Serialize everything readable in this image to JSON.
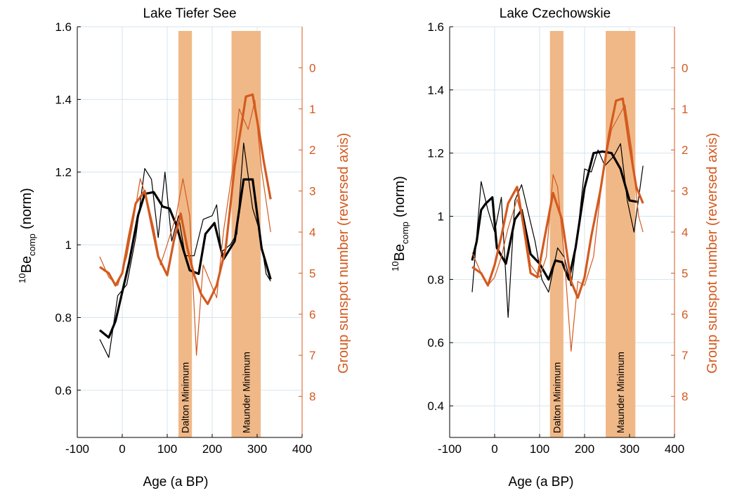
{
  "colors": {
    "left_axis": "#000000",
    "right_axis": "#d35a1f",
    "band": "#f0b887",
    "grid": "#d4e5ee"
  },
  "shared": {
    "xlabel": "Age (a BP)",
    "x_ticks": [
      "-100",
      "0",
      "100",
      "200",
      "300",
      "400"
    ],
    "ylabel_sup": "10",
    "ylabel_main": "Be",
    "ylabel_sub": "comp",
    "ylabel_tail": "(norm)",
    "ylabel_right": "Group sunspot number (reversed axis)",
    "band_labels": [
      "Dalton Minimum",
      "Maunder Minimum"
    ]
  },
  "chart_data": [
    {
      "type": "line",
      "title": "Lake Tiefer See",
      "xlabel": "Age (a BP)",
      "ylabel": "10Be comp (norm)",
      "ylabel_right": "Group sunspot number (reversed axis)",
      "xlim": [
        -100,
        400
      ],
      "ylim": [
        0.47,
        1.6
      ],
      "ylim_right": [
        9.0,
        -1.0
      ],
      "right_axis_reversed": true,
      "grid": true,
      "y_ticks": [
        "0.6",
        "0.8",
        "1",
        "1.2",
        "1.4",
        "1.6"
      ],
      "y_right_ticks": [
        "0",
        "1",
        "2",
        "3",
        "4",
        "5",
        "6",
        "7",
        "8"
      ],
      "bands": [
        {
          "label": "Dalton Minimum",
          "x": [
            125,
            155
          ]
        },
        {
          "label": "Maunder Minimum",
          "x": [
            243,
            308
          ]
        }
      ],
      "series": [
        {
          "axis": "left",
          "style": "thin",
          "x": [
            -50,
            -30,
            -10,
            10,
            30,
            50,
            65,
            80,
            95,
            110,
            125,
            140,
            160,
            180,
            200,
            210,
            220,
            240,
            255,
            270,
            290,
            305,
            320,
            330
          ],
          "y": [
            0.74,
            0.69,
            0.86,
            0.89,
            1.02,
            1.21,
            1.18,
            1.02,
            1.2,
            1.01,
            1.08,
            0.97,
            0.97,
            1.07,
            1.08,
            1.11,
            0.98,
            1.0,
            1.03,
            1.28,
            1.1,
            1.04,
            0.92,
            0.9
          ]
        },
        {
          "axis": "left",
          "style": "thick",
          "x": [
            -50,
            -30,
            -15,
            0,
            15,
            35,
            50,
            70,
            90,
            105,
            120,
            135,
            150,
            170,
            185,
            205,
            225,
            250,
            270,
            290,
            310,
            330
          ],
          "y": [
            0.765,
            0.745,
            0.79,
            0.87,
            0.95,
            1.08,
            1.14,
            1.145,
            1.105,
            1.1,
            1.055,
            0.99,
            0.93,
            0.92,
            1.03,
            1.06,
            0.96,
            1.01,
            1.18,
            1.18,
            0.99,
            0.905
          ]
        },
        {
          "axis": "right",
          "style": "thin",
          "x": [
            -50,
            -30,
            -10,
            10,
            25,
            40,
            55,
            70,
            85,
            100,
            120,
            135,
            150,
            165,
            180,
            195,
            210,
            225,
            245,
            260,
            280,
            295,
            310,
            330
          ],
          "y": [
            4.6,
            5.1,
            5.3,
            4.6,
            3.7,
            2.7,
            3.2,
            3.9,
            4.8,
            4.3,
            3.6,
            2.7,
            3.6,
            7.0,
            4.8,
            5.2,
            5.6,
            4.0,
            2.5,
            1.0,
            1.5,
            0.8,
            2.5,
            4.0
          ]
        },
        {
          "axis": "right",
          "style": "thick",
          "x": [
            -50,
            -30,
            -15,
            0,
            15,
            30,
            50,
            65,
            80,
            100,
            115,
            130,
            145,
            160,
            175,
            190,
            210,
            230,
            250,
            265,
            275,
            290,
            305,
            315,
            330
          ],
          "y": [
            4.85,
            5.0,
            5.3,
            5.0,
            4.1,
            3.3,
            3.0,
            3.8,
            4.6,
            5.05,
            4.2,
            3.55,
            4.4,
            5.05,
            5.5,
            5.75,
            5.3,
            4.4,
            2.4,
            1.4,
            0.7,
            0.65,
            1.6,
            2.3,
            3.2
          ]
        }
      ]
    },
    {
      "type": "line",
      "title": "Lake Czechowskie",
      "xlabel": "Age (a BP)",
      "ylabel": "10Be comp (norm)",
      "ylabel_right": "Group sunspot number (reversed axis)",
      "xlim": [
        -100,
        400
      ],
      "ylim": [
        0.3,
        1.6
      ],
      "ylim_right": [
        9.0,
        -1.0
      ],
      "right_axis_reversed": true,
      "grid": true,
      "y_ticks": [
        "0.4",
        "0.6",
        "0.8",
        "1",
        "1.2",
        "1.4",
        "1.6"
      ],
      "y_right_ticks": [
        "0",
        "1",
        "2",
        "3",
        "4",
        "5",
        "6",
        "7",
        "8"
      ],
      "bands": [
        {
          "label": "Dalton Minimum",
          "x": [
            123,
            153
          ]
        },
        {
          "label": "Maunder Minimum",
          "x": [
            247,
            313
          ]
        }
      ],
      "series": [
        {
          "axis": "left",
          "style": "thin",
          "x": [
            -50,
            -30,
            -15,
            0,
            15,
            30,
            45,
            60,
            75,
            90,
            105,
            120,
            140,
            155,
            170,
            185,
            200,
            215,
            230,
            245,
            265,
            280,
            295,
            310,
            330
          ],
          "y": [
            0.76,
            1.11,
            1.02,
            0.95,
            1.06,
            0.68,
            1.05,
            1.1,
            1.01,
            0.92,
            0.8,
            0.76,
            0.9,
            0.87,
            0.78,
            0.95,
            1.15,
            1.14,
            1.21,
            1.16,
            1.19,
            1.23,
            1.05,
            0.95,
            1.16
          ]
        },
        {
          "axis": "left",
          "style": "thick",
          "x": [
            -50,
            -40,
            -30,
            -20,
            -5,
            5,
            25,
            45,
            60,
            80,
            100,
            120,
            135,
            150,
            165,
            180,
            200,
            220,
            240,
            260,
            280,
            300,
            320
          ],
          "y": [
            0.86,
            0.92,
            1.02,
            1.04,
            1.06,
            0.9,
            0.85,
            0.99,
            1.02,
            0.88,
            0.85,
            0.8,
            0.86,
            0.855,
            0.8,
            0.9,
            1.09,
            1.2,
            1.205,
            1.2,
            1.15,
            1.05,
            1.045
          ]
        },
        {
          "axis": "right",
          "style": "thin",
          "x": [
            -50,
            -30,
            -15,
            0,
            15,
            30,
            50,
            65,
            80,
            100,
            115,
            130,
            140,
            155,
            170,
            185,
            200,
            220,
            240,
            260,
            275,
            290,
            305,
            320,
            330
          ],
          "y": [
            4.5,
            5.0,
            5.3,
            5.1,
            4.6,
            3.9,
            3.2,
            3.8,
            4.8,
            5.1,
            4.6,
            2.6,
            2.9,
            4.6,
            6.9,
            5.2,
            5.3,
            4.6,
            2.6,
            1.5,
            1.2,
            0.9,
            2.0,
            3.6,
            4.0
          ]
        },
        {
          "axis": "right",
          "style": "thick",
          "x": [
            -50,
            -30,
            -15,
            0,
            15,
            30,
            50,
            65,
            80,
            95,
            110,
            130,
            150,
            170,
            185,
            200,
            215,
            235,
            255,
            270,
            285,
            300,
            315,
            330
          ],
          "y": [
            4.85,
            5.0,
            5.3,
            4.8,
            4.1,
            3.3,
            2.9,
            3.9,
            5.0,
            5.1,
            4.2,
            3.05,
            3.7,
            5.2,
            5.6,
            5.1,
            4.1,
            3.0,
            1.6,
            0.8,
            0.75,
            1.9,
            2.9,
            3.3
          ]
        }
      ]
    }
  ]
}
